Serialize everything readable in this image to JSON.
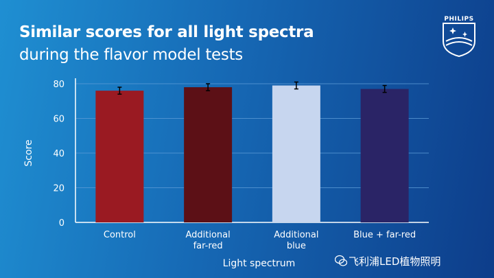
{
  "header": {
    "title": "Similar scores for all light spectra",
    "subtitle": "during the flavor model tests"
  },
  "brand": {
    "name": "PHILIPS"
  },
  "watermark": {
    "text": "飞利浦LED植物照明",
    "icon": "wechat-icon"
  },
  "chart_data": {
    "type": "bar",
    "title": "",
    "xlabel": "Light spectrum",
    "ylabel": "Score",
    "ylim": [
      0,
      80
    ],
    "yticks": [
      0,
      20,
      40,
      60,
      80
    ],
    "grid": true,
    "categories": [
      [
        "Control"
      ],
      [
        "Additional",
        "far-red"
      ],
      [
        "Additional",
        "blue"
      ],
      [
        "Blue + far-red"
      ]
    ],
    "values": [
      76,
      78,
      79,
      77
    ],
    "error": [
      2,
      2,
      2,
      2
    ],
    "colors": [
      "#9a1a22",
      "#5c1016",
      "#c7d6ef",
      "#2a2466"
    ]
  }
}
